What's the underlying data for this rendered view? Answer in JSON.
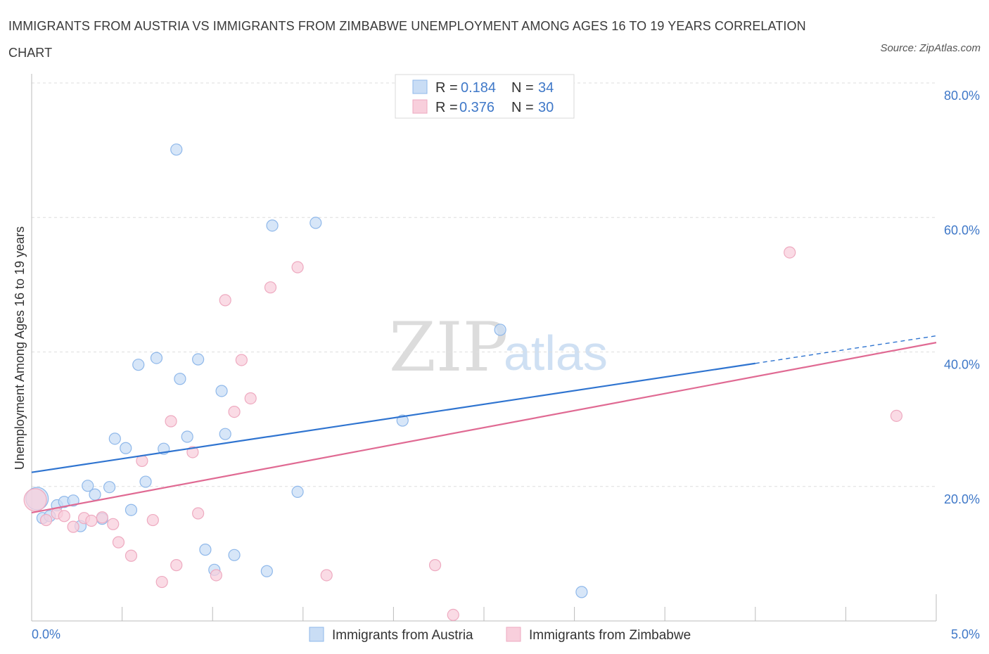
{
  "title": "IMMIGRANTS FROM AUSTRIA VS IMMIGRANTS FROM ZIMBABWE UNEMPLOYMENT AMONG AGES 16 TO 19 YEARS CORRELATION CHART",
  "source": "Source: ZipAtlas.com",
  "watermark": {
    "zip": "ZIP",
    "atlas": "atlas"
  },
  "stats_legend": [
    {
      "r_label": "R = ",
      "r_value": "0.184",
      "n_label": "N = ",
      "n_value": "34"
    },
    {
      "r_label": "R = ",
      "r_value": "0.376",
      "n_label": "N = ",
      "n_value": "30"
    }
  ],
  "chart_data": {
    "type": "scatter",
    "title": "IMMIGRANTS FROM AUSTRIA VS IMMIGRANTS FROM ZIMBABWE UNEMPLOYMENT AMONG AGES 16 TO 19 YEARS CORRELATION CHART",
    "xlabel": "",
    "ylabel": "Unemployment Among Ages 16 to 19 years",
    "xlim": [
      0,
      5
    ],
    "ylim": [
      0,
      80
    ],
    "x_tick_labels": [
      {
        "value": 0,
        "label": "0.0%"
      },
      {
        "value": 5,
        "label": "5.0%"
      }
    ],
    "y_tick_labels": [
      {
        "value": 20,
        "label": "20.0%"
      },
      {
        "value": 40,
        "label": "40.0%"
      },
      {
        "value": 60,
        "label": "60.0%"
      },
      {
        "value": 80,
        "label": "80.0%"
      }
    ],
    "grid": "horizontal dashed",
    "legend_position": "bottom",
    "series": [
      {
        "name": "Immigrants from Austria",
        "color": "#8fb8ea",
        "fill": "#c9ddf5",
        "line_color": "#2f74d0",
        "R": 0.184,
        "N": 34,
        "trend": {
          "x0": 0,
          "y0": 22.1,
          "x1": 4.0,
          "y1": 38.3,
          "dash_to_x": 5,
          "dash_to_y": 42.4
        },
        "points": [
          {
            "x": 0.03,
            "y": 18.2,
            "s": 2
          },
          {
            "x": 0.06,
            "y": 15.3
          },
          {
            "x": 0.1,
            "y": 15.6
          },
          {
            "x": 0.14,
            "y": 17.2
          },
          {
            "x": 0.18,
            "y": 17.7
          },
          {
            "x": 0.23,
            "y": 17.9
          },
          {
            "x": 0.27,
            "y": 14.1
          },
          {
            "x": 0.31,
            "y": 20.1
          },
          {
            "x": 0.35,
            "y": 18.8
          },
          {
            "x": 0.39,
            "y": 15.2
          },
          {
            "x": 0.43,
            "y": 19.9
          },
          {
            "x": 0.46,
            "y": 27.1
          },
          {
            "x": 0.52,
            "y": 25.7
          },
          {
            "x": 0.55,
            "y": 16.5
          },
          {
            "x": 0.59,
            "y": 38.1
          },
          {
            "x": 0.63,
            "y": 20.7
          },
          {
            "x": 0.69,
            "y": 39.1
          },
          {
            "x": 0.73,
            "y": 25.6
          },
          {
            "x": 0.8,
            "y": 70.1
          },
          {
            "x": 0.82,
            "y": 36.0
          },
          {
            "x": 0.86,
            "y": 27.4
          },
          {
            "x": 0.92,
            "y": 38.9
          },
          {
            "x": 0.96,
            "y": 10.6
          },
          {
            "x": 1.01,
            "y": 7.6
          },
          {
            "x": 1.05,
            "y": 34.2
          },
          {
            "x": 1.07,
            "y": 27.8
          },
          {
            "x": 1.12,
            "y": 9.8
          },
          {
            "x": 1.3,
            "y": 7.4
          },
          {
            "x": 1.33,
            "y": 58.8
          },
          {
            "x": 1.47,
            "y": 19.2
          },
          {
            "x": 1.57,
            "y": 59.2
          },
          {
            "x": 2.05,
            "y": 29.8
          },
          {
            "x": 2.59,
            "y": 43.3
          },
          {
            "x": 3.04,
            "y": 4.3
          }
        ]
      },
      {
        "name": "Immigrants from Zimbabwe",
        "color": "#eeaac0",
        "fill": "#f8cfdc",
        "line_color": "#e06a93",
        "R": 0.376,
        "N": 30,
        "trend": {
          "x0": 0,
          "y0": 16.1,
          "x1": 5,
          "y1": 41.4
        },
        "points": [
          {
            "x": 0.02,
            "y": 18.0,
            "s": 2
          },
          {
            "x": 0.08,
            "y": 15.0
          },
          {
            "x": 0.14,
            "y": 16.0
          },
          {
            "x": 0.18,
            "y": 15.6
          },
          {
            "x": 0.23,
            "y": 14.0
          },
          {
            "x": 0.29,
            "y": 15.3
          },
          {
            "x": 0.33,
            "y": 14.9
          },
          {
            "x": 0.39,
            "y": 15.4
          },
          {
            "x": 0.45,
            "y": 14.4
          },
          {
            "x": 0.48,
            "y": 11.7
          },
          {
            "x": 0.55,
            "y": 9.7
          },
          {
            "x": 0.61,
            "y": 23.8
          },
          {
            "x": 0.67,
            "y": 15.0
          },
          {
            "x": 0.72,
            "y": 5.8
          },
          {
            "x": 0.77,
            "y": 29.7
          },
          {
            "x": 0.8,
            "y": 8.3
          },
          {
            "x": 0.89,
            "y": 25.1
          },
          {
            "x": 0.92,
            "y": 16.0
          },
          {
            "x": 1.02,
            "y": 6.8
          },
          {
            "x": 1.07,
            "y": 47.7
          },
          {
            "x": 1.12,
            "y": 31.1
          },
          {
            "x": 1.16,
            "y": 38.8
          },
          {
            "x": 1.21,
            "y": 33.1
          },
          {
            "x": 1.32,
            "y": 49.6
          },
          {
            "x": 1.47,
            "y": 52.6
          },
          {
            "x": 1.63,
            "y": 6.8
          },
          {
            "x": 2.23,
            "y": 8.3
          },
          {
            "x": 2.33,
            "y": 0.9
          },
          {
            "x": 4.19,
            "y": 54.8
          },
          {
            "x": 4.78,
            "y": 30.5
          }
        ]
      }
    ]
  }
}
